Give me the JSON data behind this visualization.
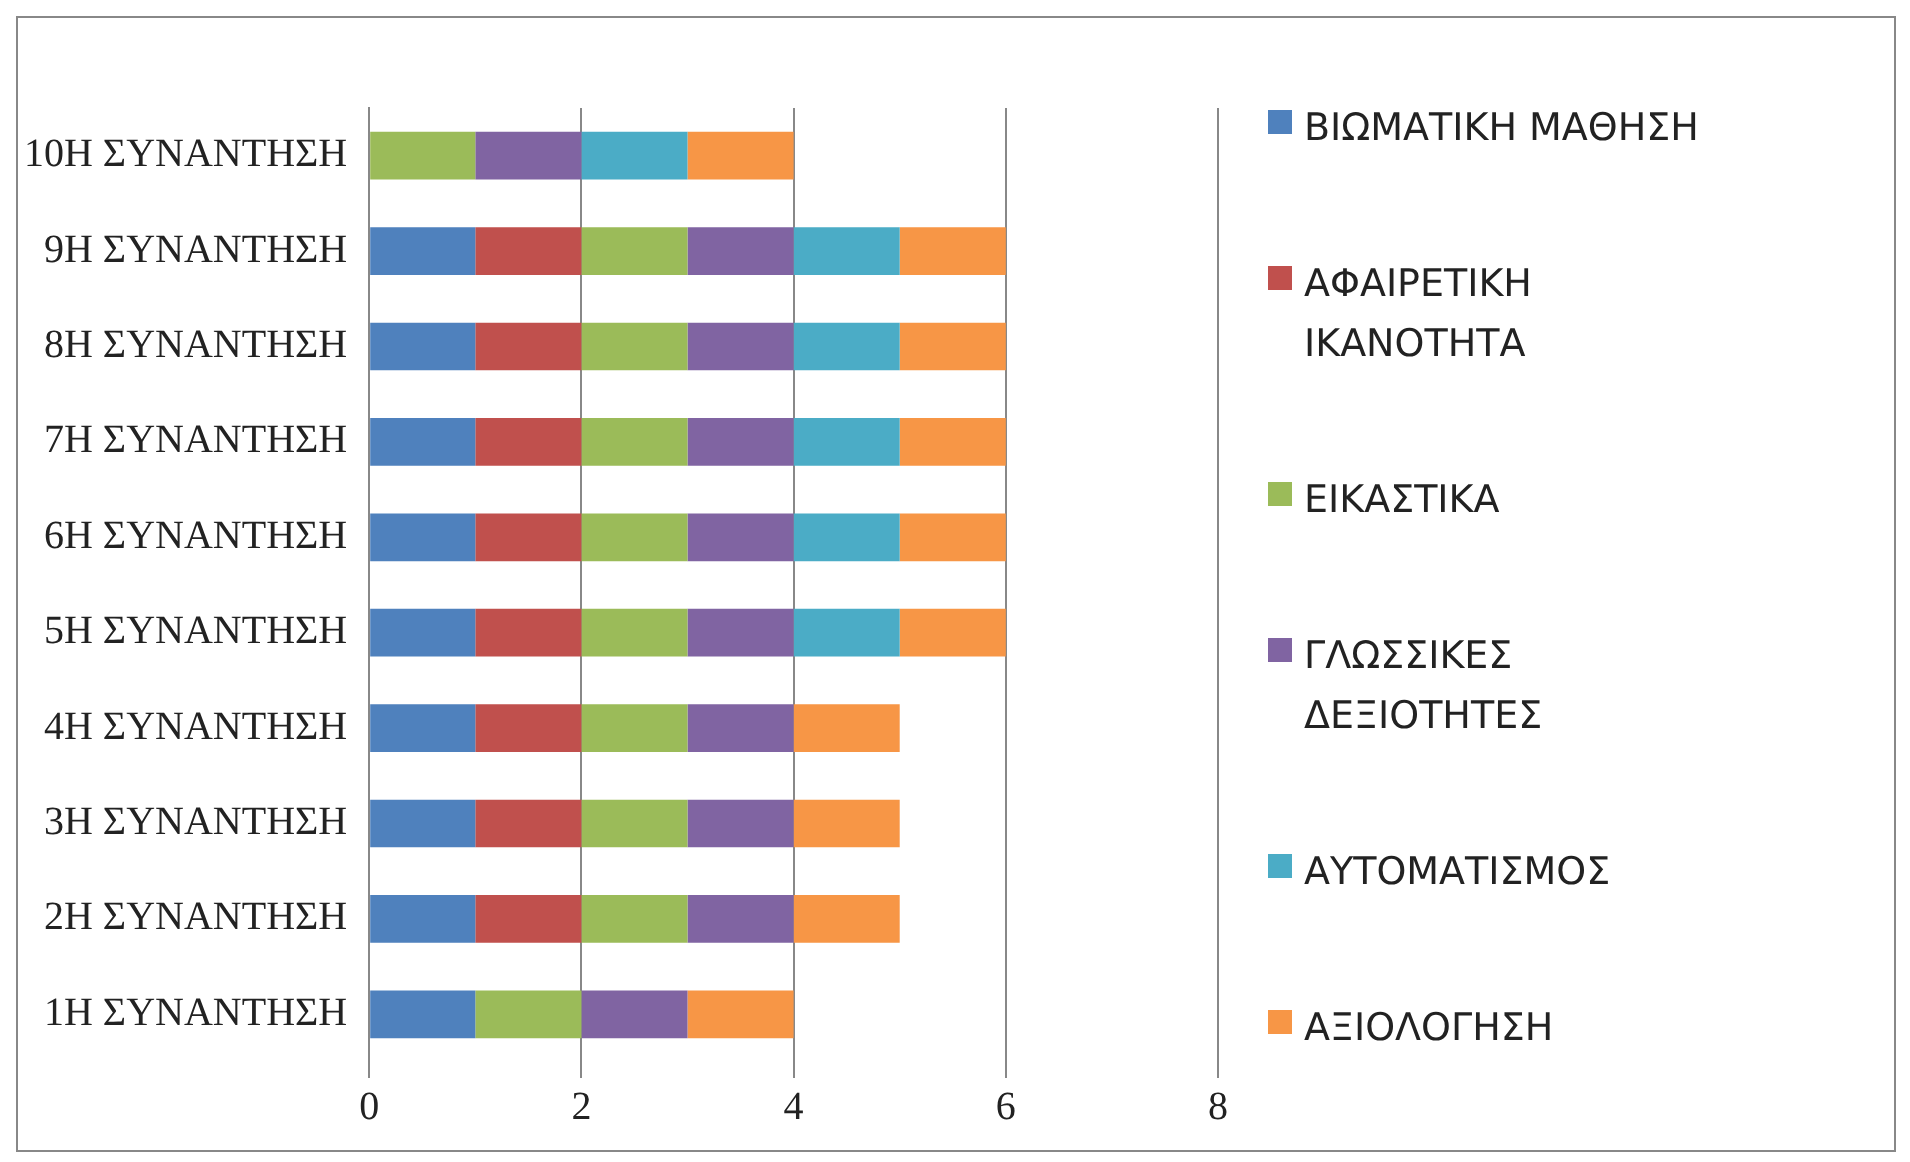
{
  "chart_data": {
    "type": "bar",
    "orientation": "horizontal",
    "stacked": true,
    "categories": [
      "10Η ΣΥΝΑΝΤΗΣΗ",
      "9Η ΣΥΝΑΝΤΗΣΗ",
      "8Η ΣΥΝΑΝΤΗΣΗ",
      "7Η ΣΥΝΑΝΤΗΣΗ",
      "6Η ΣΥΝΑΝΤΗΣΗ",
      "5Η ΣΥΝΑΝΤΗΣΗ",
      "4Η ΣΥΝΑΝΤΗΣΗ",
      "3Η ΣΥΝΑΝΤΗΣΗ",
      "2Η ΣΥΝΑΝΤΗΣΗ",
      "1Η ΣΥΝΑΝΤΗΣΗ"
    ],
    "series": [
      {
        "name": "ΒΙΩΜΑΤΙΚΗ ΜΑΘΗΣΗ",
        "color": "#4f81bd",
        "values": [
          0,
          1,
          1,
          1,
          1,
          1,
          1,
          1,
          1,
          1
        ]
      },
      {
        "name": "ΑΦΑΙΡΕΤΙΚΗ ΙΚΑΝΟΤΗΤΑ",
        "color": "#c0504d",
        "values": [
          0,
          1,
          1,
          1,
          1,
          1,
          1,
          1,
          1,
          0
        ]
      },
      {
        "name": "ΕΙΚΑΣΤΙΚΑ",
        "color": "#9bbb59",
        "values": [
          1,
          1,
          1,
          1,
          1,
          1,
          1,
          1,
          1,
          1
        ]
      },
      {
        "name": "ΓΛΩΣΣΙΚΕΣ ΔΕΞΙΟΤΗΤΕΣ",
        "color": "#8064a2",
        "values": [
          1,
          1,
          1,
          1,
          1,
          1,
          1,
          1,
          1,
          1
        ]
      },
      {
        "name": "ΑΥΤΟΜΑΤΙΣΜΟΣ",
        "color": "#4bacc6",
        "values": [
          1,
          1,
          1,
          1,
          1,
          1,
          0,
          0,
          0,
          0
        ]
      },
      {
        "name": "ΑΞΙΟΛΟΓΗΣΗ",
        "color": "#f79646",
        "values": [
          1,
          1,
          1,
          1,
          1,
          1,
          1,
          1,
          1,
          1
        ]
      }
    ],
    "xlim": [
      0,
      8
    ],
    "xticks": [
      0,
      2,
      4,
      6,
      8
    ],
    "grid": "x",
    "legend": "right"
  }
}
